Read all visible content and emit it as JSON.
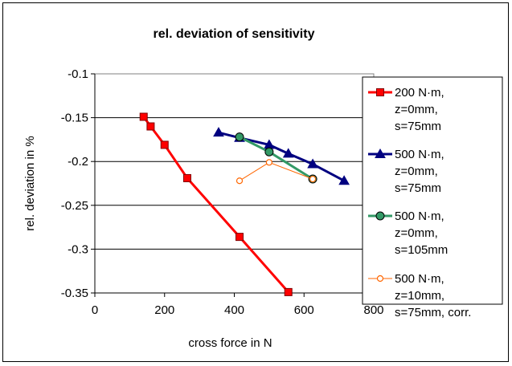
{
  "chart_data": {
    "type": "line",
    "title": "rel. deviation of sensitivity",
    "xlabel": "cross force in N",
    "ylabel": "rel. deviation in %",
    "xlim": [
      0,
      800
    ],
    "ylim": [
      -0.35,
      -0.1
    ],
    "xticks": [
      "0",
      "200",
      "400",
      "600",
      "800"
    ],
    "yticks": [
      "-0.1",
      "-0.15",
      "-0.2",
      "-0.25",
      "-0.3",
      "-0.35"
    ],
    "grid": "horizontal major gridlines",
    "legend_position": "right",
    "series": [
      {
        "name": [
          "200 N·m,",
          "z=0mm,",
          "s=75mm"
        ],
        "color": "#ff0000",
        "marker": "square",
        "x": [
          140,
          160,
          200,
          265,
          415,
          555
        ],
        "y": [
          -0.149,
          -0.16,
          -0.181,
          -0.219,
          -0.286,
          -0.349
        ]
      },
      {
        "name": [
          "500 N·m,",
          "z=0mm,",
          "s=75mm"
        ],
        "color": "#000080",
        "marker": "triangle",
        "x": [
          355,
          415,
          500,
          555,
          625,
          715
        ],
        "y": [
          -0.167,
          -0.173,
          -0.181,
          -0.191,
          -0.203,
          -0.222
        ]
      },
      {
        "name": [
          "500 N·m,",
          "z=0mm,",
          "s=105mm"
        ],
        "color": "#339966",
        "marker": "circle",
        "x": [
          415,
          500,
          625
        ],
        "y": [
          -0.172,
          -0.189,
          -0.22
        ]
      },
      {
        "name": [
          "500 N·m,",
          "z=10mm,",
          "s=75mm, corr."
        ],
        "color": "#ff6600",
        "marker": "circle-small",
        "x": [
          415,
          500,
          625
        ],
        "y": [
          -0.222,
          -0.201,
          -0.22
        ]
      }
    ]
  }
}
